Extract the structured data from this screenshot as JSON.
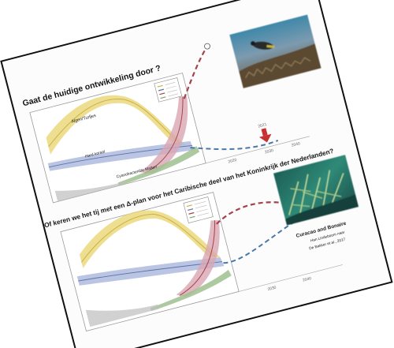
{
  "slide": {
    "title_top": "Gaat de huidige ontwikkeling door ?",
    "title_bottom": "Of keren we het tij met een Δ-plan voor het Caribische deel van het Koninkrijk der Nederlanden?",
    "curve_labels": {
      "algae": "Algen/Turfjes",
      "hard_coral": "Hard koraal",
      "cyano": "Cyanobacteriële Matten"
    },
    "year_labels": {
      "top_a": "2020",
      "top_b": "2030",
      "top_c": "2040",
      "bottom_a": "2030",
      "bottom_b": "2040"
    },
    "marker_label": "2021",
    "caption": {
      "line1": "Curacao and Bonaire",
      "line2": "Han Lindeboom naar",
      "line3": "De Bakker et al., 2017"
    }
  },
  "colors": {
    "algae": "#e8d36a",
    "coral": "#d9a6b3",
    "band": "#a9b6dc",
    "cyano": "#9fbf8f",
    "dash_red": "#a3424a",
    "dash_blue": "#4a78a8",
    "arrow": "#c8312f",
    "photo_top": "#6e5a3f",
    "photo_bottom": "#2f7a6a"
  },
  "icons": {
    "marker": "arrow-down-icon",
    "legend": "legend-box-icon"
  }
}
